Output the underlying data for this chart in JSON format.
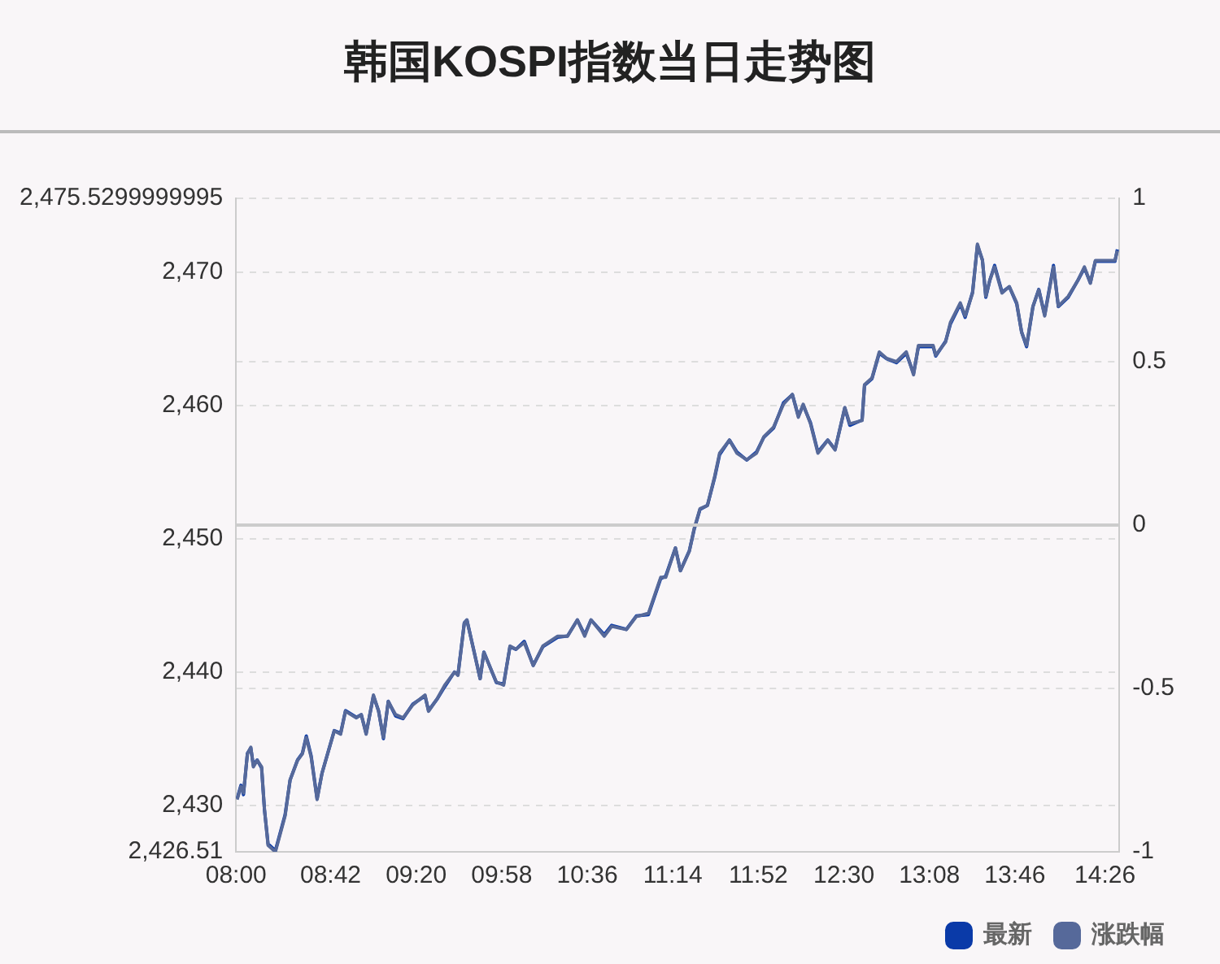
{
  "chart_data": {
    "type": "line",
    "title": "韩国KOSPI指数当日走势图",
    "x": [
      8.008,
      8.036,
      8.055,
      8.084,
      8.109,
      8.128,
      8.156,
      8.189,
      8.21,
      8.237,
      8.291,
      8.363,
      8.4,
      8.455,
      8.491,
      8.52,
      8.556,
      8.6,
      8.636,
      8.727,
      8.774,
      8.81,
      8.891,
      8.927,
      8.963,
      9.017,
      9.055,
      9.091,
      9.127,
      9.181,
      9.236,
      9.309,
      9.399,
      9.425,
      9.491,
      9.545,
      9.617,
      9.643,
      9.69,
      9.709,
      9.763,
      9.807,
      9.835,
      9.927,
      9.981,
      10.028,
      10.072,
      10.134,
      10.2,
      10.272,
      10.381,
      10.454,
      10.527,
      10.581,
      10.628,
      10.726,
      10.781,
      10.89,
      10.963,
      11.053,
      11.144,
      11.181,
      11.253,
      11.29,
      11.356,
      11.392,
      11.435,
      11.49,
      11.544,
      11.58,
      11.653,
      11.708,
      11.781,
      11.853,
      11.907,
      11.98,
      12.053,
      12.119,
      12.163,
      12.199,
      12.253,
      12.308,
      12.381,
      12.435,
      12.507,
      12.544,
      12.635,
      12.653,
      12.708,
      12.762,
      12.817,
      12.889,
      12.962,
      13.016,
      13.052,
      13.161,
      13.18,
      13.253,
      13.289,
      13.362,
      13.398,
      13.453,
      13.489,
      13.526,
      13.551,
      13.581,
      13.616,
      13.671,
      13.725,
      13.78,
      13.816,
      13.853,
      13.9,
      13.943,
      13.987,
      14.052,
      14.088,
      14.161,
      14.234,
      14.281,
      14.325,
      14.362,
      14.507,
      14.525
    ],
    "series": [
      {
        "name": "最新",
        "color": "#0a3aa8",
        "values": [
          2430.5,
          2431.5,
          2430.8,
          2433.9,
          2434.3,
          2433.0,
          2433.4,
          2432.8,
          2429.7,
          2427.1,
          2426.6,
          2429.3,
          2431.9,
          2433.4,
          2433.9,
          2435.2,
          2433.7,
          2430.5,
          2432.4,
          2435.6,
          2435.4,
          2437.1,
          2436.6,
          2436.8,
          2435.4,
          2438.2,
          2437.1,
          2435.0,
          2437.8,
          2436.7,
          2436.5,
          2437.6,
          2438.2,
          2437.1,
          2438.0,
          2438.9,
          2440.0,
          2439.8,
          2443.7,
          2443.9,
          2441.5,
          2439.5,
          2441.5,
          2439.2,
          2439.1,
          2441.9,
          2441.7,
          2442.3,
          2440.5,
          2441.9,
          2442.6,
          2442.7,
          2443.9,
          2442.8,
          2443.9,
          2442.8,
          2443.5,
          2443.2,
          2444.2,
          2444.3,
          2447.0,
          2447.2,
          2449.3,
          2447.6,
          2449.1,
          2450.7,
          2452.2,
          2452.5,
          2454.6,
          2456.3,
          2457.4,
          2456.5,
          2455.9,
          2456.5,
          2457.6,
          2458.3,
          2460.2,
          2460.8,
          2459.2,
          2460.0,
          2458.7,
          2456.5,
          2457.4,
          2456.7,
          2459.8,
          2458.5,
          2458.9,
          2461.5,
          2462.0,
          2463.9,
          2463.5,
          2463.2,
          2463.9,
          2462.4,
          2464.4,
          2464.4,
          2463.7,
          2464.8,
          2466.1,
          2467.6,
          2466.6,
          2468.5,
          2472.0,
          2470.9,
          2468.1,
          2469.4,
          2470.5,
          2468.5,
          2468.9,
          2467.6,
          2465.5,
          2464.4,
          2467.4,
          2468.7,
          2466.8,
          2470.5,
          2467.4,
          2468.1,
          2469.4,
          2470.3,
          2469.2,
          2470.8,
          2470.8,
          2471.7
        ]
      },
      {
        "name": "涨跌幅",
        "color": "#56699a",
        "axis": "y2",
        "values": [
          -0.84,
          -0.8,
          -0.82,
          -0.7,
          -0.68,
          -0.74,
          -0.72,
          -0.74,
          -0.87,
          -0.98,
          -1.0,
          -0.89,
          -0.78,
          -0.72,
          -0.7,
          -0.65,
          -0.71,
          -0.84,
          -0.76,
          -0.63,
          -0.64,
          -0.57,
          -0.59,
          -0.58,
          -0.64,
          -0.52,
          -0.57,
          -0.65,
          -0.54,
          -0.58,
          -0.59,
          -0.55,
          -0.52,
          -0.57,
          -0.53,
          -0.49,
          -0.45,
          -0.46,
          -0.3,
          -0.29,
          -0.39,
          -0.47,
          -0.39,
          -0.48,
          -0.49,
          -0.37,
          -0.38,
          -0.36,
          -0.43,
          -0.37,
          -0.34,
          -0.34,
          -0.29,
          -0.34,
          -0.29,
          -0.34,
          -0.31,
          -0.32,
          -0.28,
          -0.27,
          -0.16,
          -0.16,
          -0.07,
          -0.14,
          -0.08,
          -0.01,
          0.05,
          0.06,
          0.15,
          0.22,
          0.26,
          0.22,
          0.2,
          0.22,
          0.27,
          0.3,
          0.37,
          0.4,
          0.33,
          0.37,
          0.31,
          0.22,
          0.26,
          0.23,
          0.36,
          0.31,
          0.32,
          0.43,
          0.45,
          0.53,
          0.51,
          0.5,
          0.53,
          0.46,
          0.55,
          0.55,
          0.52,
          0.56,
          0.62,
          0.68,
          0.64,
          0.71,
          0.86,
          0.81,
          0.7,
          0.75,
          0.79,
          0.71,
          0.73,
          0.68,
          0.59,
          0.55,
          0.67,
          0.72,
          0.64,
          0.79,
          0.67,
          0.7,
          0.75,
          0.79,
          0.74,
          0.81,
          0.81,
          0.84
        ]
      }
    ],
    "xlim": [
      8,
      14.54
    ],
    "xticks": [
      {
        "value": 8,
        "label": "08:00"
      },
      {
        "value": 8.7,
        "label": "08:42"
      },
      {
        "value": 9.3333,
        "label": "09:20"
      },
      {
        "value": 9.9667,
        "label": "09:58"
      },
      {
        "value": 10.6,
        "label": "10:36"
      },
      {
        "value": 11.2333,
        "label": "11:14"
      },
      {
        "value": 11.8667,
        "label": "11:52"
      },
      {
        "value": 12.5,
        "label": "12:30"
      },
      {
        "value": 13.1333,
        "label": "13:08"
      },
      {
        "value": 13.7667,
        "label": "13:46"
      },
      {
        "value": 14.4333,
        "label": "14:26"
      }
    ],
    "ylim": [
      2426.51,
      2475.5299999995
    ],
    "yticks": [
      {
        "value": 2426.51,
        "label": "2,426.51"
      },
      {
        "value": 2430,
        "label": "2,430"
      },
      {
        "value": 2440,
        "label": "2,440"
      },
      {
        "value": 2450,
        "label": "2,450"
      },
      {
        "value": 2460,
        "label": "2,460"
      },
      {
        "value": 2470,
        "label": "2,470"
      },
      {
        "value": 2475.5299999995,
        "label": "2,475.5299999995"
      }
    ],
    "y2lim": [
      -1,
      1
    ],
    "y2ticks": [
      -1,
      -0.5,
      0,
      0.5,
      1
    ],
    "ref_lines": [
      {
        "axis": "y2",
        "value": 0,
        "color": "#cccccc"
      }
    ],
    "grid": "y",
    "legend": "bottom right",
    "marker": "none",
    "line_style": "solid"
  }
}
